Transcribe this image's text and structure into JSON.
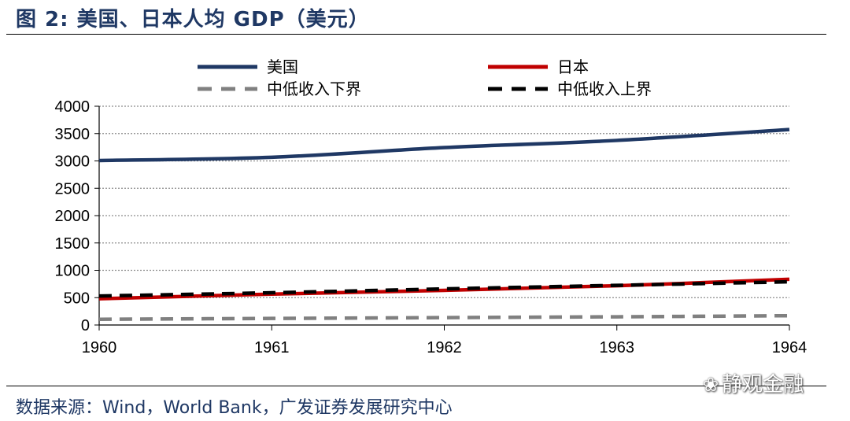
{
  "figure": {
    "title": "图 2:  美国、日本人均 GDP（美元）",
    "source": "数据来源：Wind，World Bank，广发证券发展研究中心",
    "watermark": "静观金融",
    "watermark_icon": "wechat-icon"
  },
  "chart_data": {
    "type": "line",
    "title": "美国、日本人均 GDP（美元）",
    "xlabel": "",
    "ylabel": "",
    "x": [
      1960,
      1961,
      1962,
      1963,
      1964
    ],
    "xlim": [
      1960,
      1964
    ],
    "ylim": [
      0,
      4000
    ],
    "y_ticks": [
      0,
      500,
      1000,
      1500,
      2000,
      2500,
      3000,
      3500,
      4000
    ],
    "x_ticks": [
      1960,
      1961,
      1962,
      1963,
      1964
    ],
    "grid": true,
    "legend_position": "top",
    "series": [
      {
        "name": "美国",
        "color": "#1f3864",
        "style": "solid",
        "values": [
          3007,
          3067,
          3244,
          3375,
          3574
        ]
      },
      {
        "name": "日本",
        "color": "#c00000",
        "style": "solid",
        "values": [
          479,
          564,
          633,
          718,
          836
        ]
      },
      {
        "name": "中低收入下界",
        "color": "#808080",
        "style": "dashed",
        "values": [
          105,
          120,
          135,
          150,
          170
        ]
      },
      {
        "name": "中低收入上界",
        "color": "#000000",
        "style": "dashed",
        "values": [
          530,
          590,
          660,
          725,
          790
        ]
      }
    ]
  }
}
